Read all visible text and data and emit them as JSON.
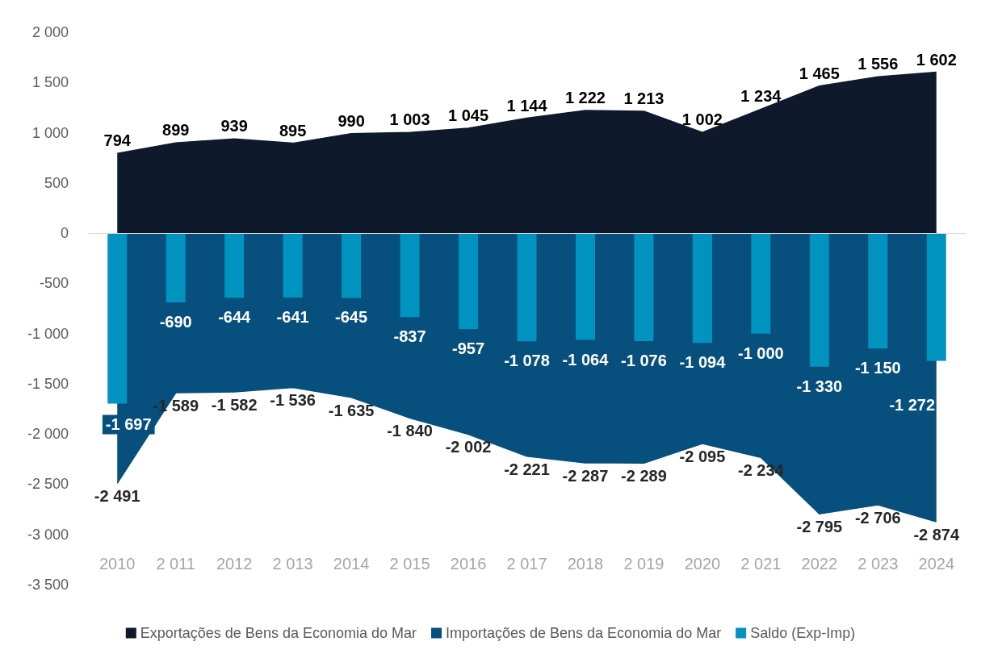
{
  "chart_data": {
    "type": "area",
    "categories": [
      "2010",
      "2 011",
      "2012",
      "2 013",
      "2014",
      "2 015",
      "2016",
      "2 017",
      "2018",
      "2 019",
      "2020",
      "2 021",
      "2022",
      "2 023",
      "2024"
    ],
    "series": [
      {
        "name": "Exportações de Bens da Economia do Mar",
        "color": "#0e1a2b",
        "values": [
          794,
          899,
          939,
          895,
          990,
          1003,
          1045,
          1144,
          1222,
          1213,
          1002,
          1234,
          1465,
          1556,
          1602
        ],
        "value_labels": [
          "794",
          "899",
          "939",
          "895",
          "990",
          "1 003",
          "1 045",
          "1 144",
          "1 222",
          "1 213",
          "1 002",
          "1 234",
          "1 465",
          "1 556",
          "1 602"
        ]
      },
      {
        "name": "Importações de Bens da Economia do Mar",
        "color": "#074f7c",
        "values": [
          -2491,
          -1589,
          -1582,
          -1536,
          -1635,
          -1840,
          -2002,
          -2221,
          -2287,
          -2289,
          -2095,
          -2234,
          -2795,
          -2706,
          -2874
        ],
        "value_labels": [
          "-2 491",
          "-1 589",
          "-1 582",
          "-1 536",
          "-1 635",
          "-1 840",
          "-2 002",
          "-2 221",
          "-2 287",
          "-2 289",
          "-2 095",
          "-2 234",
          "-2 795",
          "-2 706",
          "-2 874"
        ]
      },
      {
        "name": "Saldo (Exp-Imp)",
        "type": "bar",
        "color": "#0093bf",
        "values": [
          -1697,
          -690,
          -644,
          -641,
          -645,
          -837,
          -957,
          -1078,
          -1064,
          -1076,
          -1094,
          -1000,
          -1330,
          -1150,
          -1272
        ],
        "value_labels": [
          "-1 697",
          "-690",
          "-644",
          "-641",
          "-645",
          "-837",
          "-957",
          "-1 078",
          "-1 064",
          "-1 076",
          "-1 094",
          "-1 000",
          "-1 330",
          "-1 150",
          "-1 272"
        ]
      }
    ],
    "ylim": [
      -3500,
      2000
    ],
    "yticks": [
      {
        "value": -3500,
        "label": "-3 500"
      },
      {
        "value": -3000,
        "label": "-3 000"
      },
      {
        "value": -2500,
        "label": "-2 500"
      },
      {
        "value": -2000,
        "label": "-2 000"
      },
      {
        "value": -1500,
        "label": "-1 500"
      },
      {
        "value": -1000,
        "label": "-1 000"
      },
      -500,
      0,
      500,
      {
        "value": 1000,
        "label": "1 000"
      },
      {
        "value": 1500,
        "label": "1 500"
      },
      {
        "value": 2000,
        "label": "2 000"
      }
    ],
    "legend": "bottom"
  }
}
